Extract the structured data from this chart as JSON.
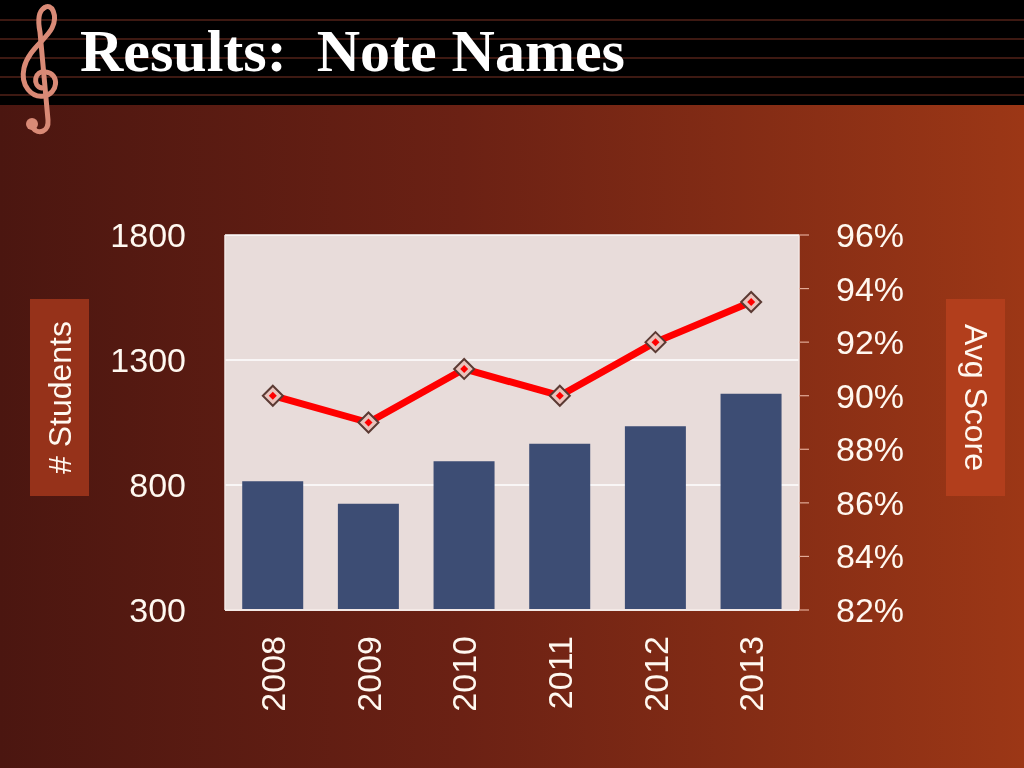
{
  "chart_data": {
    "type": "bar",
    "title": "Results:  Note Names",
    "ylabel": "# Students",
    "y2label": "Avg Score",
    "categories": [
      "2008",
      "2009",
      "2010",
      "2011",
      "2012",
      "2013"
    ],
    "series": [
      {
        "color": "#3d4d74",
        "values": [
          815,
          725,
          895,
          965,
          1035,
          1165
        ]
      },
      {
        "type": "line",
        "axis": "y2",
        "color": "#ff0000",
        "values": [
          90,
          89,
          91,
          90,
          92,
          93.5
        ]
      }
    ],
    "ylim": [
      300,
      1800
    ],
    "yticks": [
      300,
      800,
      1300,
      1800
    ],
    "y2lim": [
      82,
      96
    ],
    "y2ticks": [
      {
        "value": 82,
        "label": "82%"
      },
      {
        "value": 84,
        "label": "84%"
      },
      {
        "value": 86,
        "label": "86%"
      },
      {
        "value": 88,
        "label": "88%"
      },
      {
        "value": 90,
        "label": "90%"
      },
      {
        "value": 92,
        "label": "92%"
      },
      {
        "value": 94,
        "label": "94%"
      },
      {
        "value": 96,
        "label": "96%"
      }
    ],
    "grid": "y",
    "marker": "diamond",
    "line_style": "solid"
  }
}
